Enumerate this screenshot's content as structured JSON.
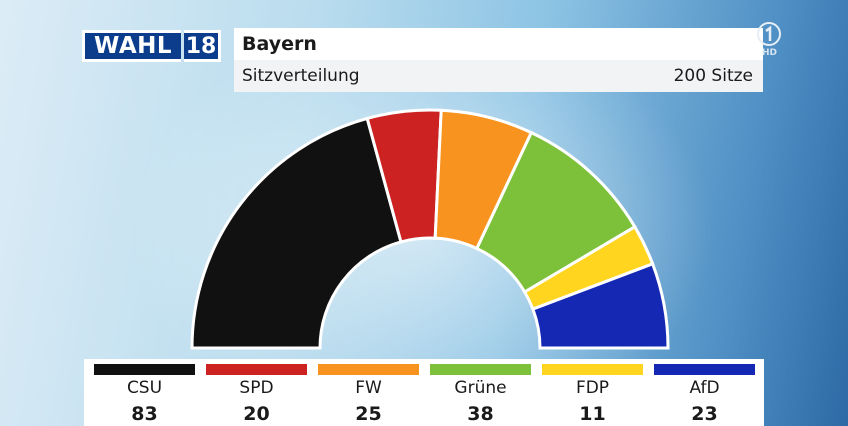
{
  "header": {
    "brand_word": "WAHL",
    "brand_year": "18",
    "title": "Bayern",
    "subtitle": "Sitzverteilung",
    "total_label": "200 Sitze",
    "logo_badge": "HD"
  },
  "chart_data": {
    "type": "pie",
    "subtype": "semicircle-parliament",
    "title": "Bayern",
    "subtitle": "Sitzverteilung",
    "total_seats": 200,
    "categories": [
      "CSU",
      "SPD",
      "FW",
      "Grüne",
      "FDP",
      "AfD"
    ],
    "values": [
      83,
      20,
      25,
      38,
      11,
      23
    ],
    "colors": [
      "#111111",
      "#cc2222",
      "#f7931e",
      "#7dc13a",
      "#ffd520",
      "#1428b4"
    ]
  }
}
